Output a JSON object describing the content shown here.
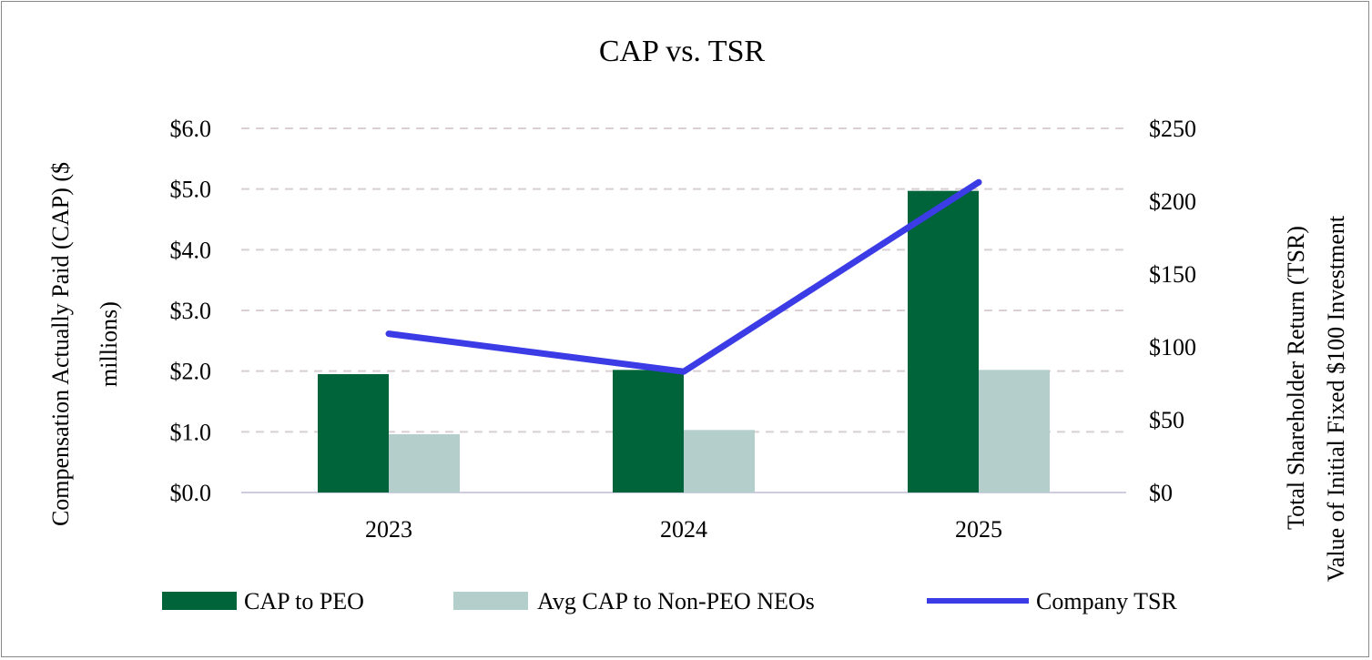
{
  "chart_data": {
    "type": "bar",
    "title": "CAP vs. TSR",
    "categories": [
      "2023",
      "2024",
      "2025"
    ],
    "ylabel": "Compensation Actually Paid (CAP) ($ millions)",
    "ylabel_lines": [
      "Compensation Actually Paid (CAP) ($",
      "millions)"
    ],
    "y2label": "Total Shareholder Return (TSR) Value of Initial Fixed $100 Investment",
    "y2label_lines": [
      "Total Shareholder Return (TSR)",
      "Value of Initial Fixed $100 Investment"
    ],
    "ylim": [
      0,
      6
    ],
    "y2lim": [
      0,
      250
    ],
    "yticks": [
      "$0.0",
      "$1.0",
      "$2.0",
      "$3.0",
      "$4.0",
      "$5.0",
      "$6.0"
    ],
    "y2ticks": [
      "$0",
      "$50",
      "$100",
      "$150",
      "$200",
      "$250"
    ],
    "grid": true,
    "legend_position": "bottom",
    "series": [
      {
        "name": "CAP to PEO",
        "type": "bar",
        "axis": "left",
        "color": "#00643a",
        "values": [
          1.95,
          2.02,
          4.97
        ]
      },
      {
        "name": "Avg CAP to Non-PEO NEOs",
        "type": "bar",
        "axis": "left",
        "color": "#b4cfcb",
        "values": [
          0.96,
          1.03,
          2.02
        ]
      },
      {
        "name": "Company TSR",
        "type": "line",
        "axis": "right",
        "color": "#3c3ce6",
        "values": [
          109,
          83,
          213
        ]
      }
    ]
  }
}
